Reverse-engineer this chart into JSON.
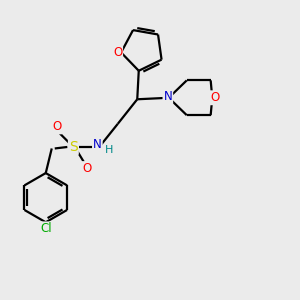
{
  "bg_color": "#ebebeb",
  "bond_color": "#000000",
  "atom_colors": {
    "O": "#ff0000",
    "N": "#0000cc",
    "S": "#cccc00",
    "Cl": "#00aa00",
    "H": "#008888",
    "C": "#000000"
  },
  "figsize": [
    3.0,
    3.0
  ],
  "dpi": 100
}
